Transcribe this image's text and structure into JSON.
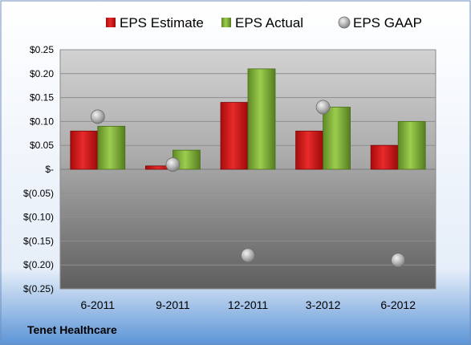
{
  "chart_data": {
    "type": "bar",
    "categories": [
      "6-2011",
      "9-2011",
      "12-2011",
      "3-2012",
      "6-2012"
    ],
    "series": [
      {
        "name": "EPS Estimate",
        "kind": "bar",
        "color": "#cc1111",
        "values": [
          0.08,
          0.007,
          0.14,
          0.08,
          0.05
        ]
      },
      {
        "name": "EPS Actual",
        "kind": "bar",
        "color": "#77a832",
        "values": [
          0.09,
          0.04,
          0.21,
          0.13,
          0.1
        ]
      },
      {
        "name": "EPS GAAP",
        "kind": "scatter",
        "color": "#a0a0a0",
        "values": [
          0.11,
          0.01,
          -0.18,
          0.13,
          -0.19
        ]
      }
    ],
    "yticks": [
      0.25,
      0.2,
      0.15,
      0.1,
      0.05,
      0,
      -0.05,
      -0.1,
      -0.15,
      -0.2,
      -0.25
    ],
    "ytick_labels": [
      "$0.25",
      "$0.20",
      "$0.15",
      "$0.10",
      "$0.05",
      "$-",
      "$(0.05)",
      "$(0.10)",
      "$(0.15)",
      "$(0.20)",
      "$(0.25)"
    ],
    "ylim": [
      -0.25,
      0.25
    ],
    "legend_position": "top",
    "grid": true
  },
  "footer": {
    "company": "Tenet Healthcare"
  },
  "colors": {
    "background_top": "#ffffff",
    "background_bottom": "#5b94d6",
    "plot_top": "#c8c8c8",
    "plot_bottom": "#5a5a5a"
  }
}
